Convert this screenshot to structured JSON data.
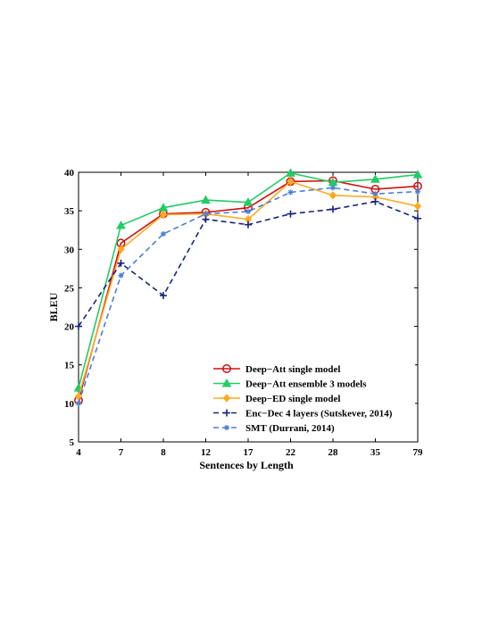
{
  "chart_data": {
    "type": "line",
    "categories": [
      "4",
      "7",
      "8",
      "12",
      "17",
      "22",
      "28",
      "35",
      "79"
    ],
    "xlabel": "Sentences by Length",
    "ylabel": "BLEU",
    "ylim": [
      5,
      40
    ],
    "yticks": [
      5,
      10,
      15,
      20,
      25,
      30,
      35,
      40
    ],
    "grid": false,
    "legend_position": "bottom-right",
    "series": [
      {
        "name": "Deep−Att single model",
        "values": [
          10.4,
          30.8,
          34.6,
          34.8,
          35.4,
          38.8,
          38.9,
          37.8,
          38.2
        ],
        "color": "#cc1111",
        "marker": "circle",
        "dash": "solid"
      },
      {
        "name": "Deep−Att ensemble 3 models",
        "values": [
          12.0,
          33.1,
          35.4,
          36.4,
          36.1,
          39.9,
          38.7,
          39.1,
          39.7
        ],
        "color": "#22cc66",
        "marker": "triangle",
        "dash": "solid"
      },
      {
        "name": "Deep−ED single model",
        "values": [
          10.9,
          30.0,
          34.5,
          34.6,
          33.9,
          38.8,
          37.0,
          36.8,
          35.6
        ],
        "color": "#ffaa22",
        "marker": "diamond",
        "dash": "solid"
      },
      {
        "name": "Enc−Dec 4 layers (Sutskever, 2014)",
        "values": [
          20.0,
          28.2,
          24.0,
          33.9,
          33.2,
          34.6,
          35.2,
          36.2,
          34.0
        ],
        "color": "#1a237e",
        "marker": "plus",
        "dash": "dashed"
      },
      {
        "name": "SMT  (Durrani, 2014)",
        "values": [
          10.0,
          26.6,
          32.0,
          34.6,
          34.9,
          37.4,
          38.0,
          37.2,
          37.5
        ],
        "color": "#4a7fd9",
        "marker": "star",
        "dash": "dashed"
      }
    ]
  }
}
